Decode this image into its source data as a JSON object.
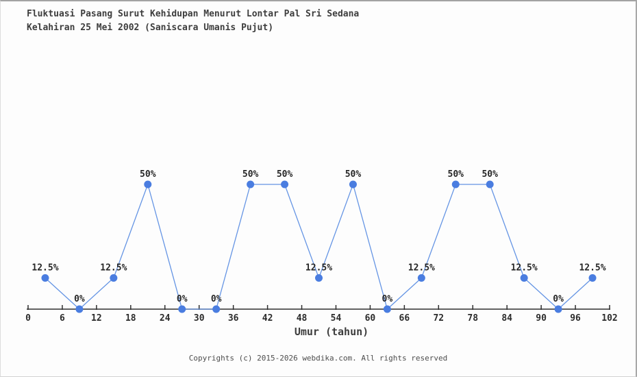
{
  "page": {
    "title_line1": "Fluktuasi Pasang Surut Kehidupan Menurut Lontar Pal Sri Sedana",
    "title_line2": "Kelahiran 25 Mei 2002 (Saniscara Umanis Pujut)",
    "footer": "Copyrights (c) 2015-2026 webdika.com. All rights reserved"
  },
  "chart_data": {
    "type": "line",
    "title": "Fluktuasi Pasang Surut Kehidupan Menurut Lontar Pal Sri Sedana — Kelahiran 25 Mei 2002 (Saniscara Umanis Pujut)",
    "x": [
      3,
      9,
      15,
      21,
      27,
      33,
      39,
      45,
      51,
      57,
      63,
      69,
      75,
      81,
      87,
      93,
      99
    ],
    "values": [
      12.5,
      0,
      12.5,
      50,
      0,
      0,
      50,
      50,
      12.5,
      50,
      0,
      12.5,
      50,
      50,
      12.5,
      0,
      12.5
    ],
    "point_labels": [
      "12.5%",
      "0%",
      "12.5%",
      "50%",
      "0%",
      "0%",
      "50%",
      "50%",
      "12.5%",
      "50%",
      "0%",
      "12.5%",
      "50%",
      "50%",
      "12.5%",
      "0%",
      "12.5%"
    ],
    "xlabel": "Umur (tahun)",
    "ylabel": "",
    "x_ticks": [
      0,
      6,
      12,
      18,
      24,
      30,
      36,
      42,
      48,
      54,
      60,
      66,
      72,
      78,
      84,
      90,
      96,
      102
    ],
    "xlim": [
      0,
      102
    ],
    "ylim": [
      0,
      100
    ],
    "grid": false,
    "legend": null,
    "colors": {
      "line": "#6494e4",
      "marker": "#4a7de0",
      "axis": "#2e2e2e",
      "tick_label": "#2b2b2b",
      "point_label": "#262626"
    }
  }
}
